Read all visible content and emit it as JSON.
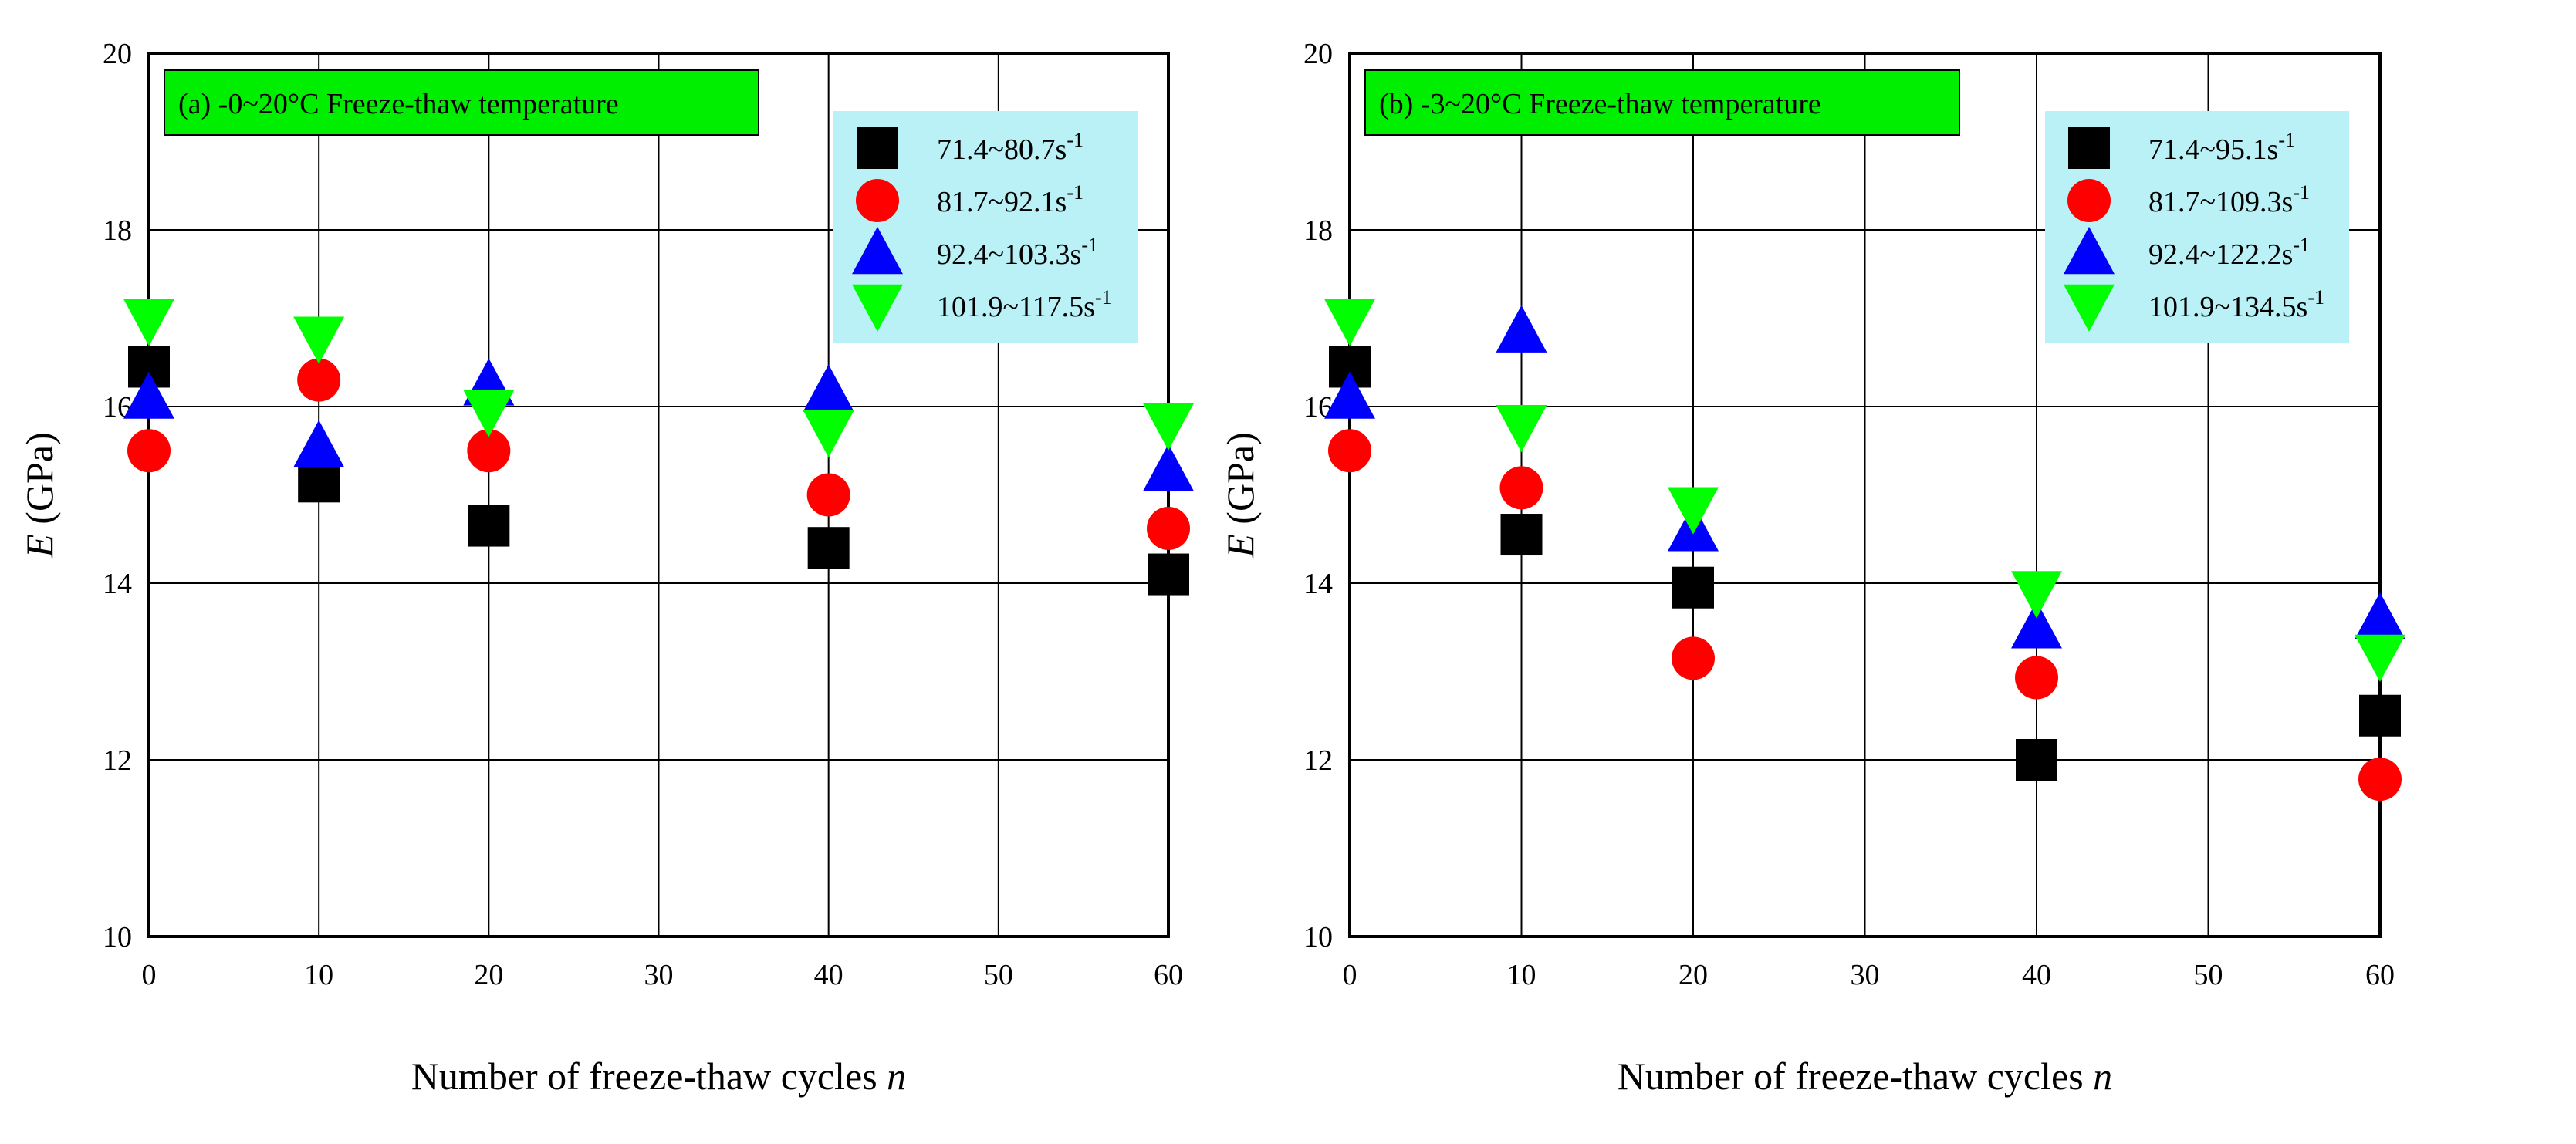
{
  "chart_data": [
    {
      "type": "scatter",
      "title": "(a) -0~20°C Freeze-thaw temperature",
      "xlabel": "Number of freeze-thaw cycles",
      "xlabel_var": "n",
      "ylabel": "(GPa)",
      "ylabel_var": "E",
      "xlim": [
        0,
        60
      ],
      "ylim": [
        10,
        20
      ],
      "xticks": [
        0,
        10,
        20,
        30,
        40,
        50,
        60
      ],
      "yticks": [
        10,
        12,
        14,
        16,
        18,
        20
      ],
      "grid": true,
      "legend_position": "top-right",
      "x": [
        0,
        10,
        20,
        40,
        60
      ],
      "series": [
        {
          "name": "71.4~80.7s",
          "sup": "-1",
          "marker": "square",
          "color": "#000000",
          "values": [
            16.45,
            15.15,
            14.65,
            14.4,
            14.1
          ]
        },
        {
          "name": "81.7~92.1s",
          "sup": "-1",
          "marker": "circle",
          "color": "#ff0000",
          "values": [
            15.5,
            16.3,
            15.5,
            15.0,
            14.62
          ]
        },
        {
          "name": "92.4~103.3s",
          "sup": "-1",
          "marker": "triangle-up",
          "color": "#0000ff",
          "values": [
            16.1,
            15.55,
            16.25,
            16.18,
            15.28
          ]
        },
        {
          "name": "101.9~117.5s",
          "sup": "-1",
          "marker": "triangle-down",
          "color": "#00ff00",
          "values": [
            16.98,
            16.78,
            15.95,
            15.72,
            15.8
          ]
        }
      ]
    },
    {
      "type": "scatter",
      "title": "(b) -3~20°C Freeze-thaw temperature",
      "xlabel": "Number of freeze-thaw cycles",
      "xlabel_var": "n",
      "ylabel": "(GPa)",
      "ylabel_var": "E",
      "xlim": [
        0,
        60
      ],
      "ylim": [
        10,
        20
      ],
      "xticks": [
        0,
        10,
        20,
        30,
        40,
        50,
        60
      ],
      "yticks": [
        10,
        12,
        14,
        16,
        18,
        20
      ],
      "grid": true,
      "legend_position": "top-right",
      "x": [
        0,
        10,
        20,
        40,
        60
      ],
      "series": [
        {
          "name": "71.4~95.1s",
          "sup": "-1",
          "marker": "square",
          "color": "#000000",
          "values": [
            16.45,
            14.55,
            13.95,
            12.0,
            12.5
          ]
        },
        {
          "name": "81.7~109.3s",
          "sup": "-1",
          "marker": "circle",
          "color": "#ff0000",
          "values": [
            15.5,
            15.08,
            13.15,
            12.93,
            11.78
          ]
        },
        {
          "name": "92.4~122.2s",
          "sup": "-1",
          "marker": "triangle-up",
          "color": "#0000ff",
          "values": [
            16.1,
            16.85,
            14.6,
            13.5,
            13.6
          ]
        },
        {
          "name": "101.9~134.5s",
          "sup": "-1",
          "marker": "triangle-down",
          "color": "#00ff00",
          "values": [
            16.98,
            15.78,
            14.85,
            13.9,
            13.18
          ]
        }
      ]
    }
  ],
  "style": {
    "title_box_color": "#00ee00",
    "legend_box_color": "#b9f1f6",
    "grid_color": "#000000"
  }
}
